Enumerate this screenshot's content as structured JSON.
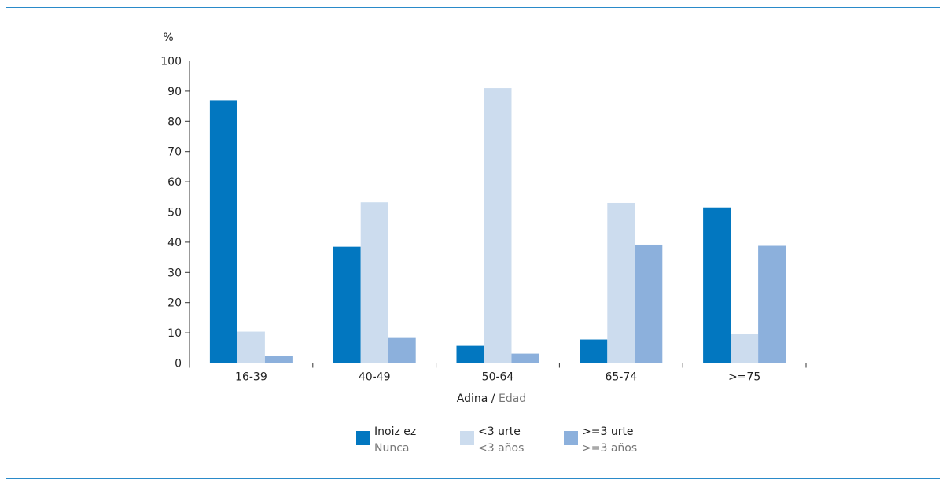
{
  "chart_data": {
    "type": "bar",
    "ylabel": "%",
    "xlabel_primary": "Adina",
    "xlabel_separator": " / ",
    "xlabel_secondary": "Edad",
    "ylim": [
      0,
      100
    ],
    "yticks": [
      0,
      10,
      20,
      30,
      40,
      50,
      60,
      70,
      80,
      90,
      100
    ],
    "categories": [
      "16-39",
      "40-49",
      "50-64",
      "65-74",
      ">=75"
    ],
    "series": [
      {
        "name": "Inoiz ez",
        "name_secondary": "Nunca",
        "color": "#0277c0",
        "values": [
          87,
          38.5,
          5.7,
          7.8,
          51.5
        ]
      },
      {
        "name": "<3 urte",
        "name_secondary": "<3 años",
        "color": "#ccdcee",
        "values": [
          10.4,
          53.2,
          91,
          53,
          9.5
        ]
      },
      {
        "name": ">=3 urte",
        "name_secondary": ">=3 años",
        "color": "#8cb0dc",
        "values": [
          2.3,
          8.3,
          3.1,
          39.2,
          38.8
        ]
      }
    ],
    "grid": false,
    "legend_position": "bottom"
  }
}
